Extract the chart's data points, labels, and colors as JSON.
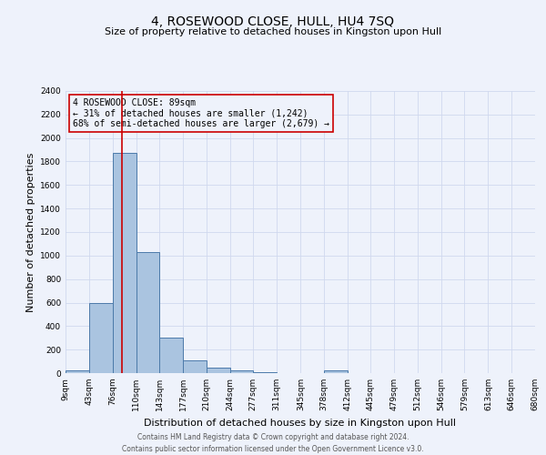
{
  "title": "4, ROSEWOOD CLOSE, HULL, HU4 7SQ",
  "subtitle": "Size of property relative to detached houses in Kingston upon Hull",
  "xlabel": "Distribution of detached houses by size in Kingston upon Hull",
  "ylabel": "Number of detached properties",
  "footer_line1": "Contains HM Land Registry data © Crown copyright and database right 2024.",
  "footer_line2": "Contains public sector information licensed under the Open Government Licence v3.0.",
  "annotation_line1": "4 ROSEWOOD CLOSE: 89sqm",
  "annotation_line2": "← 31% of detached houses are smaller (1,242)",
  "annotation_line3": "68% of semi-detached houses are larger (2,679) →",
  "property_size": 89,
  "bin_edges": [
    9,
    43,
    76,
    110,
    143,
    177,
    210,
    244,
    277,
    311,
    345,
    378,
    412,
    445,
    479,
    512,
    546,
    579,
    613,
    646,
    680
  ],
  "bar_values": [
    20,
    600,
    1870,
    1030,
    300,
    110,
    50,
    20,
    10,
    0,
    0,
    20,
    0,
    0,
    0,
    0,
    0,
    0,
    0,
    0
  ],
  "bar_color": "#aac4e0",
  "bar_edge_color": "#4c7aaa",
  "red_line_color": "#cc0000",
  "annotation_box_color": "#cc0000",
  "grid_color": "#d0d8ee",
  "background_color": "#eef2fb",
  "ylim": [
    0,
    2400
  ],
  "ytick_step": 200,
  "title_fontsize": 10,
  "subtitle_fontsize": 8,
  "ylabel_fontsize": 8,
  "xlabel_fontsize": 8,
  "tick_fontsize": 6.5,
  "annotation_fontsize": 7,
  "footer_fontsize": 5.5
}
